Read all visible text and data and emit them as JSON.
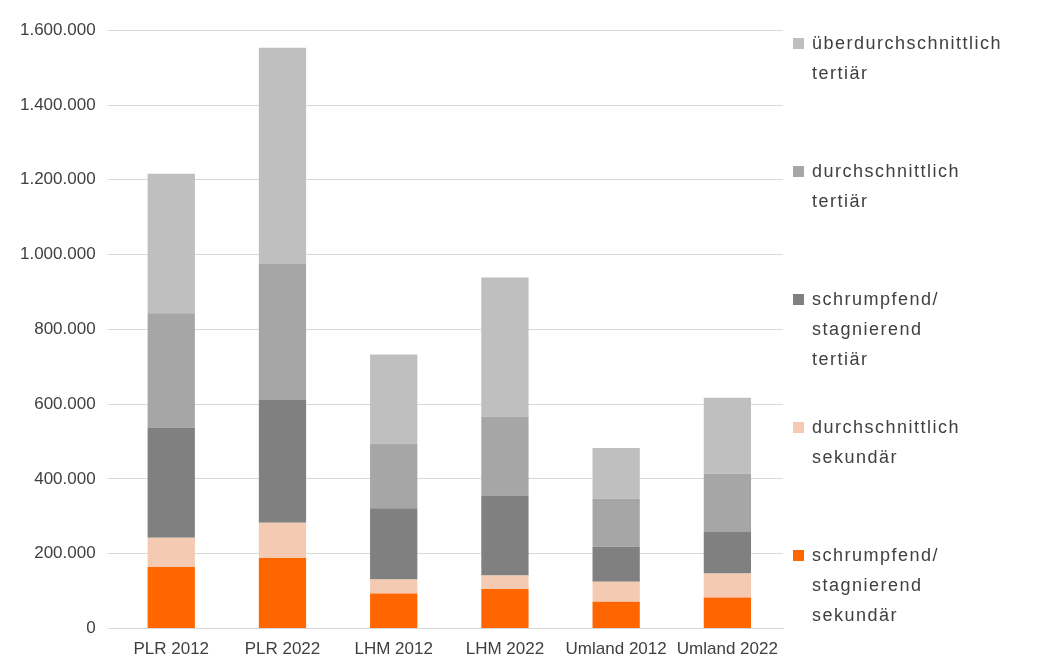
{
  "chart_data": {
    "type": "bar",
    "stacked": true,
    "categories": [
      "PLR 2012",
      "PLR 2022",
      "LHM 2012",
      "LHM 2022",
      "Umland 2012",
      "Umland 2022"
    ],
    "series": [
      {
        "name": "schrumpfend/ stagnierend sekundär",
        "color": "#ff6600",
        "values": [
          165000,
          189000,
          94000,
          106000,
          72000,
          83000
        ]
      },
      {
        "name": "durchschnittlich sekundär",
        "color": "#f4cbb2",
        "values": [
          78000,
          94000,
          37000,
          36000,
          53000,
          64000
        ]
      },
      {
        "name": "schrumpfend/ stagnierend tertiär",
        "color": "#808080",
        "values": [
          295000,
          328000,
          191000,
          214000,
          94000,
          111000
        ]
      },
      {
        "name": "durchschnittlich tertiär",
        "color": "#a6a6a6",
        "values": [
          305000,
          364000,
          172000,
          211000,
          128000,
          156000
        ]
      },
      {
        "name": "überdurchschnittlich tertiär",
        "color": "#bfbfbf",
        "values": [
          373000,
          578000,
          239000,
          372000,
          136000,
          203000
        ]
      }
    ],
    "ylim": [
      0,
      1600000
    ],
    "yticks": [
      0,
      {
        "value": 200000,
        "label": "200.000"
      },
      {
        "value": 400000,
        "label": "400.000"
      },
      {
        "value": 600000,
        "label": "600.000"
      },
      {
        "value": 800000,
        "label": "800.000"
      },
      {
        "value": 1000000,
        "label": "1.000.000"
      },
      {
        "value": 1200000,
        "label": "1.200.000"
      },
      {
        "value": 1400000,
        "label": "1.400.000"
      },
      {
        "value": 1600000,
        "label": "1.600.000"
      }
    ],
    "grid": "y",
    "legend": "right"
  }
}
